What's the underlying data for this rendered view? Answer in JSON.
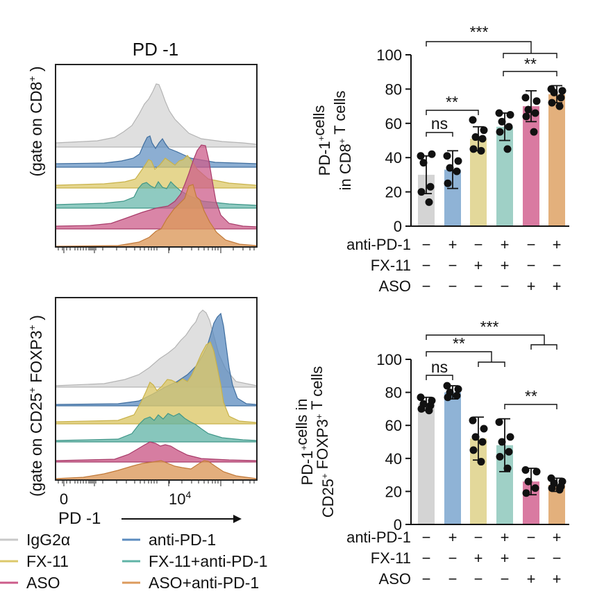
{
  "flow": {
    "title": "PD -1",
    "top_ylabel_pre": "(gate on CD8",
    "top_ylabel_sup": "+",
    "top_ylabel_post": " )",
    "bottom_ylabel_pre": "(gate on CD25",
    "bottom_ylabel_sup1": "+",
    "bottom_ylabel_mid": " FOXP3",
    "bottom_ylabel_sup2": "+",
    "bottom_ylabel_post": " )",
    "tick_zero": "0",
    "tick_1e4_base": "10",
    "tick_1e4_exp": "4",
    "xlabel": "PD -1"
  },
  "legend": [
    {
      "label": "IgG2α",
      "color": "#c8c8c8"
    },
    {
      "label": "anti-PD-1",
      "color": "#5b8bbf"
    },
    {
      "label": "FX-11",
      "color": "#dcc86a"
    },
    {
      "label": "FX-11+anti-PD-1",
      "color": "#5fb3a6"
    },
    {
      "label": "ASO",
      "color": "#cc5c8a"
    },
    {
      "label": "ASO+anti-PD-1",
      "color": "#dc9a5c"
    }
  ],
  "chart_data": [
    {
      "type": "bar",
      "ylabel_line1": "PD-1+cells",
      "ylabel_line2": "in CD8+ T cells",
      "ylim": [
        0,
        100
      ],
      "yticks": [
        0,
        20,
        40,
        60,
        80,
        100
      ],
      "categories": [
        "anti-PD-1 −/FX-11 −/ASO −",
        "anti-PD-1 +/FX-11 −/ASO −",
        "anti-PD-1 −/FX-11 +/ASO −",
        "anti-PD-1 +/FX-11 +/ASO −",
        "anti-PD-1 −/FX-11 −/ASO +",
        "anti-PD-1 +/FX-11 −/ASO +"
      ],
      "values": [
        30,
        33,
        51,
        58,
        70,
        77
      ],
      "errors": [
        11,
        11,
        7,
        8,
        9,
        5
      ],
      "colors": [
        "#d4d4d4",
        "#8fb3d6",
        "#e3d89a",
        "#9fd0c6",
        "#d97aa1",
        "#e3b07c"
      ],
      "points": [
        [
          41,
          42,
          37,
          23,
          20,
          14
        ],
        [
          41,
          38,
          34,
          32,
          25
        ],
        [
          62,
          56,
          52,
          51,
          45,
          44
        ],
        [
          66,
          65,
          61,
          58,
          55,
          45
        ],
        [
          75,
          73,
          68,
          66,
          64,
          55
        ],
        [
          80,
          79,
          78,
          75,
          72,
          70
        ]
      ],
      "row_labels": [
        "anti-PD-1",
        "FX-11",
        "ASO"
      ],
      "signs": [
        [
          "−",
          "+",
          "−",
          "+",
          "−",
          "+"
        ],
        [
          "−",
          "−",
          "+",
          "+",
          "−",
          "−"
        ],
        [
          "−",
          "−",
          "−",
          "−",
          "+",
          "+"
        ]
      ],
      "significance": [
        "ns",
        "**",
        "***",
        "**"
      ]
    },
    {
      "type": "bar",
      "ylabel_line1": "PD-1+cells in",
      "ylabel_line2": "CD25+ FOXP3+ T cells",
      "ylim": [
        0,
        100
      ],
      "yticks": [
        0,
        20,
        40,
        60,
        80,
        100
      ],
      "categories": [
        "anti-PD-1 −/FX-11 −/ASO −",
        "anti-PD-1 +/FX-11 −/ASO −",
        "anti-PD-1 −/FX-11 +/ASO −",
        "anti-PD-1 +/FX-11 +/ASO −",
        "anti-PD-1 −/FX-11 −/ASO +",
        "anti-PD-1 +/FX-11 −/ASO +"
      ],
      "values": [
        73,
        80,
        52,
        48,
        26,
        24
      ],
      "errors": [
        4,
        4,
        13,
        16,
        8,
        4
      ],
      "colors": [
        "#d4d4d4",
        "#8fb3d6",
        "#e3d89a",
        "#9fd0c6",
        "#d97aa1",
        "#e3b07c"
      ],
      "points": [
        [
          77,
          75,
          73,
          72,
          70,
          69
        ],
        [
          84,
          82,
          80,
          78,
          77
        ],
        [
          63,
          58,
          53,
          50,
          45,
          38
        ],
        [
          62,
          53,
          50,
          44,
          41,
          34
        ],
        [
          33,
          32,
          26,
          22,
          19
        ],
        [
          28,
          26,
          25,
          23,
          22,
          21
        ]
      ],
      "row_labels": [
        "anti-PD-1",
        "FX-11",
        "ASO"
      ],
      "signs": [
        [
          "−",
          "+",
          "−",
          "+",
          "−",
          "+"
        ],
        [
          "−",
          "−",
          "+",
          "+",
          "−",
          "−"
        ],
        [
          "−",
          "−",
          "−",
          "−",
          "+",
          "+"
        ]
      ],
      "significance": [
        "ns",
        "**",
        "***",
        "**"
      ]
    }
  ]
}
